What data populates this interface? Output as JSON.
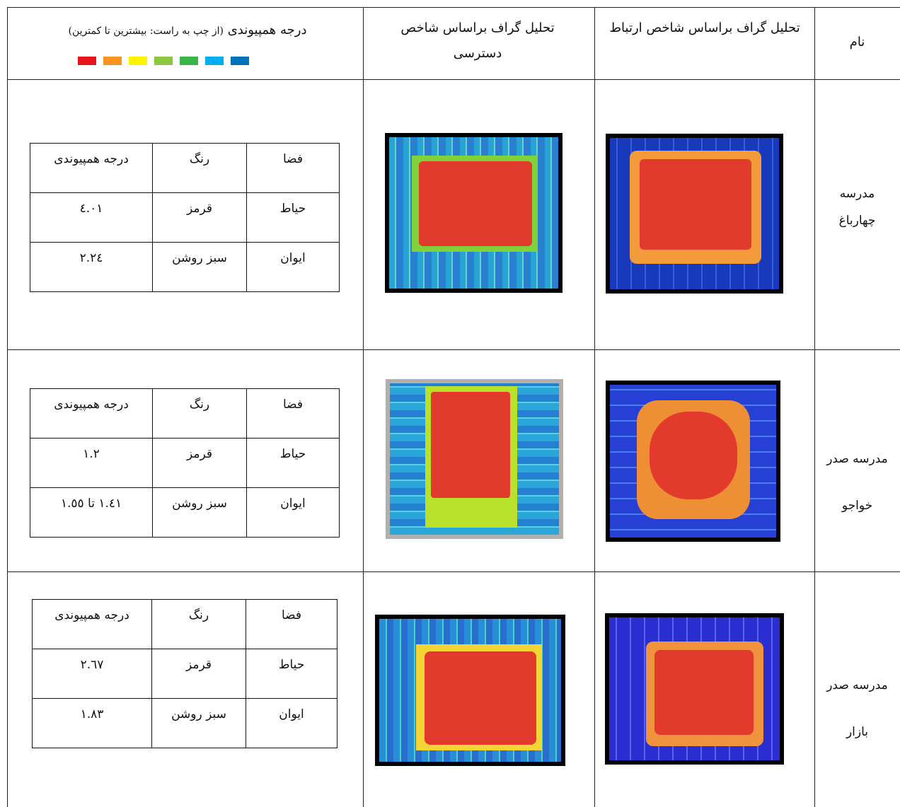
{
  "headers": {
    "name": "نام",
    "connectivity": "تحلیل گراف براساس شاخص ارتباط",
    "accessibility": "تحلیل گراف براساس شاخص دسترسی",
    "integration": "درجه همپیوندی",
    "integration_note": "(از چپ به راست: بیشترین تا کمترین)"
  },
  "legend_colors": [
    "#e8141b",
    "#f7931e",
    "#fff200",
    "#8dc63f",
    "#39b54a",
    "#00aeef",
    "#0072bc"
  ],
  "inner_headers": {
    "space": "فضا",
    "color": "رنگ",
    "degree": "درجه همپیوندی"
  },
  "rows": [
    {
      "name_line1": "مدرسه",
      "name_line2": "چهارباغ",
      "cells": [
        {
          "space": "حیاط",
          "color": "قرمز",
          "degree": "٤.٠١"
        },
        {
          "space": "ایوان",
          "color": "سبز روشن",
          "degree": "٢.٢٤"
        }
      ]
    },
    {
      "name_line1": "مدرسه صدر",
      "name_line2": "خواجو",
      "cells": [
        {
          "space": "حیاط",
          "color": "قرمز",
          "degree": "١.٢"
        },
        {
          "space": "ایوان",
          "color": "سبز روشن",
          "degree": "١.٤١ تا ١.٥٥"
        }
      ]
    },
    {
      "name_line1": "مدرسه صدر",
      "name_line2": "بازار",
      "cells": [
        {
          "space": "حیاط",
          "color": "قرمز",
          "degree": "٢.٦٧"
        },
        {
          "space": "ایوان",
          "color": "سبز روشن",
          "degree": "١.٨٣"
        }
      ]
    }
  ]
}
